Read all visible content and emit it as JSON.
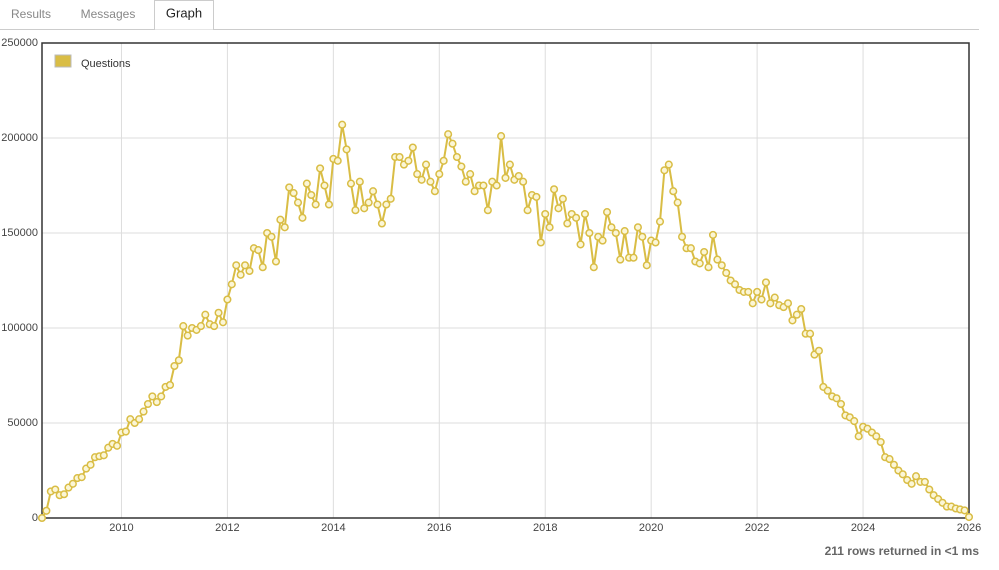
{
  "tabs": [
    "Results",
    "Messages",
    "Graph"
  ],
  "chart_data": {
    "type": "line",
    "x": [
      2008.5,
      2008.583,
      2008.667,
      2008.75,
      2008.833,
      2008.917,
      2009,
      2009.083,
      2009.167,
      2009.25,
      2009.333,
      2009.417,
      2009.5,
      2009.583,
      2009.667,
      2009.75,
      2009.833,
      2009.917,
      2010,
      2010.083,
      2010.167,
      2010.25,
      2010.333,
      2010.417,
      2010.5,
      2010.583,
      2010.667,
      2010.75,
      2010.833,
      2010.917,
      2011,
      2011.083,
      2011.167,
      2011.25,
      2011.333,
      2011.417,
      2011.5,
      2011.583,
      2011.667,
      2011.75,
      2011.833,
      2011.917,
      2012,
      2012.083,
      2012.167,
      2012.25,
      2012.333,
      2012.417,
      2012.5,
      2012.583,
      2012.667,
      2012.75,
      2012.833,
      2012.917,
      2013,
      2013.083,
      2013.167,
      2013.25,
      2013.333,
      2013.417,
      2013.5,
      2013.583,
      2013.667,
      2013.75,
      2013.833,
      2013.917,
      2014,
      2014.083,
      2014.167,
      2014.25,
      2014.333,
      2014.417,
      2014.5,
      2014.583,
      2014.667,
      2014.75,
      2014.833,
      2014.917,
      2015,
      2015.083,
      2015.167,
      2015.25,
      2015.333,
      2015.417,
      2015.5,
      2015.583,
      2015.667,
      2015.75,
      2015.833,
      2015.917,
      2016,
      2016.083,
      2016.167,
      2016.25,
      2016.333,
      2016.417,
      2016.5,
      2016.583,
      2016.667,
      2016.75,
      2016.833,
      2016.917,
      2017,
      2017.083,
      2017.167,
      2017.25,
      2017.333,
      2017.417,
      2017.5,
      2017.583,
      2017.667,
      2017.75,
      2017.833,
      2017.917,
      2018,
      2018.083,
      2018.167,
      2018.25,
      2018.333,
      2018.417,
      2018.5,
      2018.583,
      2018.667,
      2018.75,
      2018.833,
      2018.917,
      2019,
      2019.083,
      2019.167,
      2019.25,
      2019.333,
      2019.417,
      2019.5,
      2019.583,
      2019.667,
      2019.75,
      2019.833,
      2019.917,
      2020,
      2020.083,
      2020.167,
      2020.25,
      2020.333,
      2020.417,
      2020.5,
      2020.583,
      2020.667,
      2020.75,
      2020.833,
      2020.917,
      2021,
      2021.083,
      2021.167,
      2021.25,
      2021.333,
      2021.417,
      2021.5,
      2021.583,
      2021.667,
      2021.75,
      2021.833,
      2021.917,
      2022,
      2022.083,
      2022.167,
      2022.25,
      2022.333,
      2022.417,
      2022.5,
      2022.583,
      2022.667,
      2022.75,
      2022.833,
      2022.917,
      2023,
      2023.083,
      2023.167,
      2023.25,
      2023.333,
      2023.417,
      2023.5,
      2023.583,
      2023.667,
      2023.75,
      2023.833,
      2023.917,
      2024,
      2024.083,
      2024.167,
      2024.25,
      2024.333,
      2024.417,
      2024.5,
      2024.583,
      2024.667,
      2024.75,
      2024.833,
      2024.917,
      2025,
      2025.083,
      2025.167,
      2025.25,
      2025.333,
      2025.417,
      2025.5,
      2025.583,
      2025.667,
      2025.75,
      2025.833,
      2025.917,
      2026
    ],
    "series": [
      {
        "name": "Questions",
        "color": "#d9bd45",
        "values": [
          3,
          3800,
          14000,
          15000,
          12000,
          12500,
          16000,
          18000,
          21000,
          21500,
          26000,
          28000,
          32000,
          32500,
          33000,
          37000,
          39000,
          38000,
          45000,
          45500,
          52000,
          50000,
          52000,
          56000,
          60000,
          64000,
          61000,
          64000,
          69000,
          70000,
          80000,
          83000,
          101000,
          96000,
          100000,
          99000,
          101000,
          107000,
          102000,
          101000,
          108000,
          103000,
          115000,
          123000,
          133000,
          128000,
          133000,
          130000,
          142000,
          141000,
          132000,
          150000,
          148000,
          135000,
          157000,
          153000,
          174000,
          171000,
          166000,
          158000,
          176000,
          170000,
          165000,
          184000,
          175000,
          165000,
          189000,
          188000,
          207000,
          194000,
          176000,
          162000,
          177000,
          163000,
          166000,
          172000,
          165000,
          155000,
          165000,
          168000,
          190000,
          190000,
          186000,
          188000,
          195000,
          181000,
          178000,
          186000,
          177000,
          172000,
          181000,
          188000,
          202000,
          197000,
          190000,
          185000,
          177000,
          181000,
          172000,
          175000,
          175000,
          162000,
          177000,
          175000,
          201000,
          179000,
          186000,
          178000,
          180000,
          177000,
          162000,
          170000,
          169000,
          145000,
          160000,
          153000,
          173000,
          163000,
          168000,
          155000,
          160000,
          158000,
          144000,
          160000,
          150000,
          132000,
          148000,
          146000,
          161000,
          153000,
          150000,
          136000,
          151000,
          137000,
          137000,
          153000,
          148000,
          133000,
          146000,
          145000,
          156000,
          183000,
          186000,
          172000,
          166000,
          148000,
          142000,
          142000,
          135000,
          134000,
          140000,
          132000,
          149000,
          136000,
          133000,
          129000,
          125000,
          123000,
          120000,
          119000,
          119000,
          113000,
          119000,
          115000,
          124000,
          113000,
          116000,
          112000,
          111000,
          113000,
          104000,
          107000,
          110000,
          97000,
          97000,
          86000,
          88000,
          69000,
          67000,
          64000,
          63000,
          60000,
          54000,
          53000,
          51000,
          43000,
          48000,
          47000,
          45000,
          43000,
          40000,
          32000,
          31000,
          28000,
          25000,
          23000,
          20000,
          18000,
          22000,
          19000,
          19000,
          15000,
          12000,
          10000,
          8000,
          6000,
          6000,
          5000,
          4500,
          4000,
          500
        ]
      }
    ],
    "xlim": [
      2008.5,
      2026
    ],
    "xticks": [
      2010,
      2012,
      2014,
      2016,
      2018,
      2020,
      2022,
      2024,
      2026
    ],
    "ylim": [
      0,
      250000
    ],
    "yticks": [
      0,
      50000,
      100000,
      150000,
      200000,
      250000
    ],
    "grid": true,
    "legend": "top-left"
  },
  "footer": "211 rows returned in <1 ms"
}
